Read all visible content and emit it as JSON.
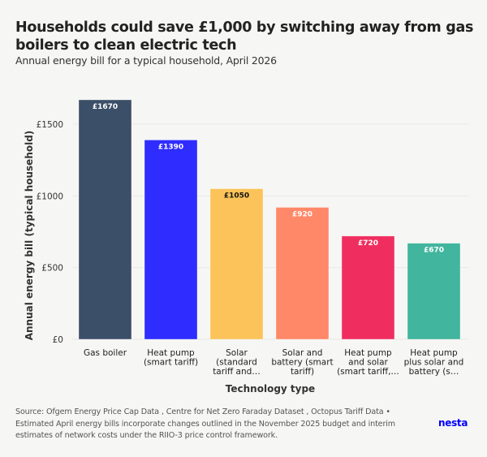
{
  "header": {
    "title": "Households could save £1,000 by switching away from gas boilers to clean electric tech",
    "subtitle": "Annual energy bill for a typical household, April 2026"
  },
  "chart_data": {
    "type": "bar",
    "title": "Households could save £1,000 by switching away from gas boilers to clean electric tech",
    "subtitle": "Annual energy bill for a typical household, April 2026",
    "xlabel": "Technology type",
    "ylabel": "Annual energy bill (typical household)",
    "ylim": [
      0,
      1750
    ],
    "yticks": [
      0,
      500,
      1000,
      1500
    ],
    "ytick_labels": [
      "£0",
      "£500",
      "£1000",
      "£1500"
    ],
    "grid": true,
    "categories": [
      [
        "Gas boiler"
      ],
      [
        "Heat pump",
        "(smart tariff)"
      ],
      [
        "Solar",
        "(standard",
        "tariff and…"
      ],
      [
        "Solar and",
        "battery (smart",
        "tariff)"
      ],
      [
        "Heat pump",
        "and solar",
        "(smart tariff,…"
      ],
      [
        "Heat pump",
        "plus solar and",
        "battery (s…"
      ]
    ],
    "values": [
      1670,
      1390,
      1050,
      920,
      720,
      670
    ],
    "data_labels": [
      "£1670",
      "£1390",
      "£1050",
      "£920",
      "£720",
      "£670"
    ],
    "colors": [
      "#3c4f68",
      "#2f2cff",
      "#fbc35a",
      "#ff8868",
      "#ef2e5f",
      "#41b59d"
    ],
    "label_colors": [
      "#ffffff",
      "#ffffff",
      "#111111",
      "#ffffff",
      "#ffffff",
      "#ffffff"
    ]
  },
  "footer": {
    "source": "Source: Ofgem Energy Price Cap Data , Centre for Net Zero Faraday Dataset , Octopus Tariff Data • Estimated April energy bills incorporate changes outlined in the November 2025 budget and interim estimates of network costs under the RIIO-3 price control framework.",
    "brand": "nesta"
  },
  "colors": {
    "background": "#f6f6f4",
    "brand": "#0000ff"
  }
}
